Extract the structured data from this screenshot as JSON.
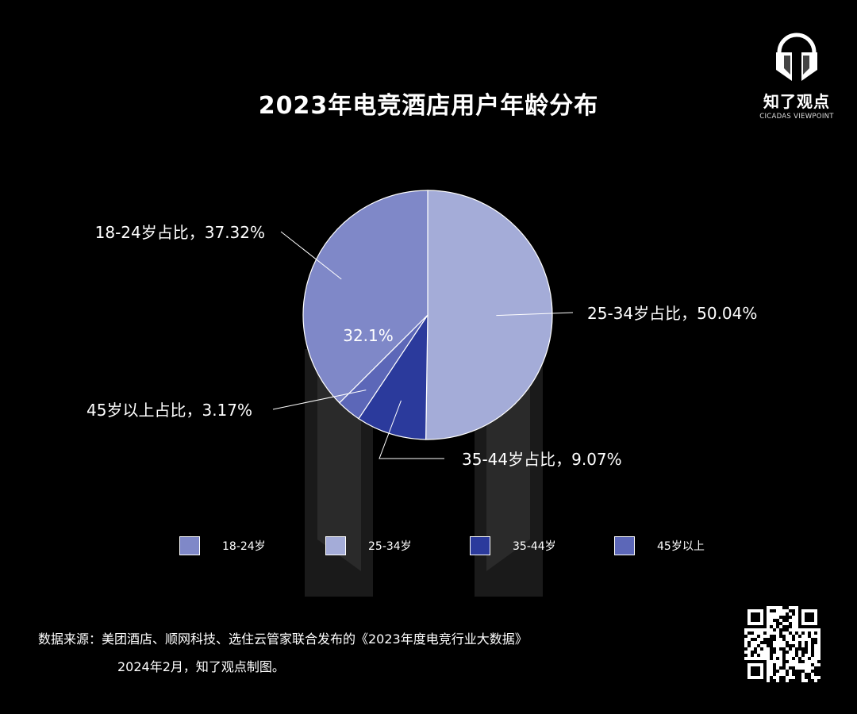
{
  "title": "2023年电竞酒店用户年龄分布",
  "logo": {
    "main": "知了观点",
    "sub": "CICADAS VIEWPOINT"
  },
  "chart_data": {
    "type": "pie",
    "slices": [
      {
        "label": "25-34岁",
        "callout": "25-34岁占比，50.04%",
        "value": 50.04,
        "color": "#a4acd8"
      },
      {
        "label": "35-44岁",
        "callout": "35-44岁占比，9.07%",
        "value": 9.07,
        "color": "#2b3a9c"
      },
      {
        "label": "45岁以上",
        "callout": "45岁以上占比，3.17%",
        "value": 3.17,
        "color": "#5c67b8"
      },
      {
        "label": "18-24岁",
        "callout": "18-24岁占比，37.32%",
        "value": 37.32,
        "color": "#7f88c8"
      }
    ],
    "inner_label": "32.1%",
    "legend": [
      "18-24岁",
      "25-34岁",
      "35-44岁",
      "45岁以上"
    ],
    "legend_placement": "bottom"
  },
  "source": {
    "line1": "数据来源：美团酒店、顺网科技、选住云管家联合发布的《2023年度电竞行业大数据》",
    "line2": "2024年2月，知了观点制图。"
  },
  "colors": {
    "background": "#000000",
    "text": "#ffffff"
  }
}
